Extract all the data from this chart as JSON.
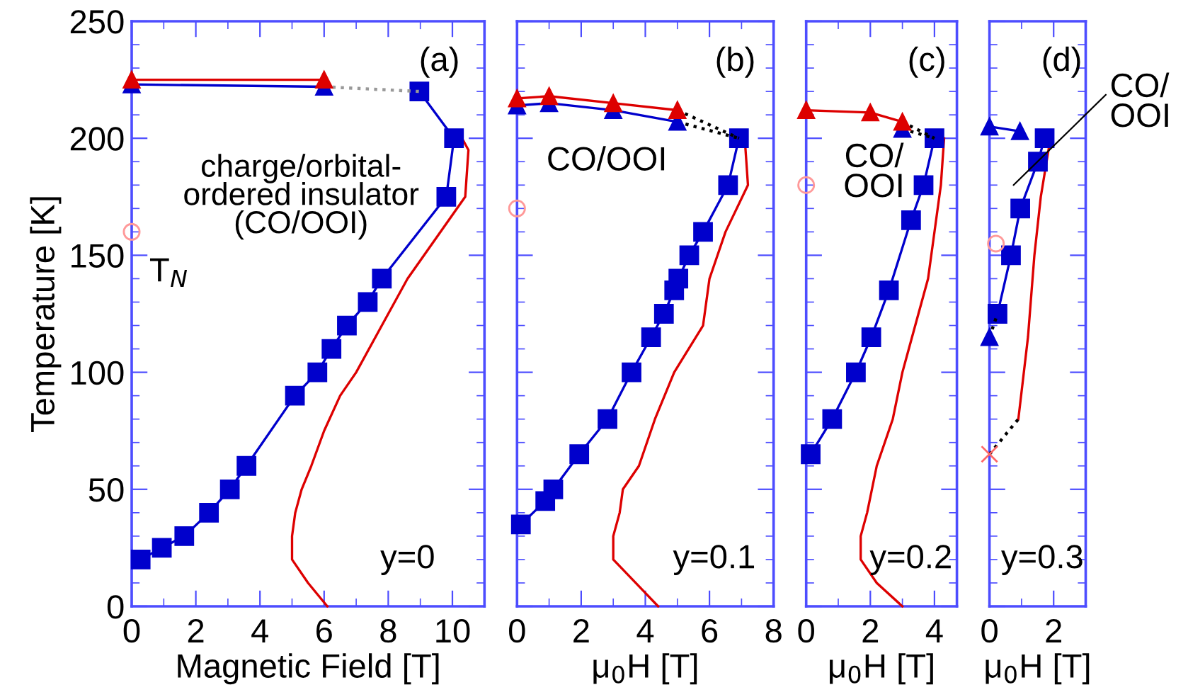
{
  "chart_data": [
    {
      "type": "scatter",
      "xlabel": "Magnetic Field [T]",
      "ylabel": "Temperature [K]",
      "xlim": [
        0,
        11
      ],
      "ylim": [
        0,
        250
      ],
      "xticks": [
        0,
        2,
        4,
        6,
        8,
        10
      ],
      "yticks": [
        0,
        50,
        100,
        150,
        200,
        250
      ],
      "grid": false,
      "legend": false,
      "annotations": [
        "(a)",
        "charge/orbital-\nordered insulator\n(CO/OOI)",
        "T$_{N}$",
        "y=0"
      ],
      "series": [
        {
          "type": "line",
          "color": "#dd0000",
          "marker": "none",
          "line_style": "solid",
          "x": [
            6.1,
            5.5,
            5.0,
            5.0,
            5.1,
            5.3,
            5.6,
            6.0,
            6.5,
            7.0,
            7.8,
            8.6,
            10.4,
            10.5,
            10.3
          ],
          "values": [
            0,
            10,
            20,
            30,
            40,
            50,
            60,
            75,
            90,
            100,
            120,
            140,
            175,
            195,
            200
          ]
        },
        {
          "type": "line",
          "color": "#0000cc",
          "marker": "square",
          "line_style": "solid",
          "x": [
            0.28,
            0.94,
            1.64,
            2.41,
            3.06,
            3.58,
            5.09,
            5.79,
            6.23,
            6.71,
            7.36,
            7.8,
            9.81,
            10.05,
            8.97
          ],
          "values": [
            20,
            25,
            30,
            40,
            50,
            60,
            90,
            100,
            110,
            120,
            130,
            140,
            175,
            200,
            220
          ]
        },
        {
          "type": "line",
          "color": "#999999",
          "marker": "none",
          "line_style": "dotted",
          "x": [
            6,
            8.97
          ],
          "values": [
            222,
            220
          ]
        },
        {
          "type": "line",
          "color": "#0000cc",
          "marker": "triangle",
          "line_style": "solid",
          "x": [
            0,
            6
          ],
          "values": [
            223,
            222
          ]
        },
        {
          "type": "line",
          "color": "#dd0000",
          "marker": "triangle",
          "line_style": "solid",
          "x": [
            0,
            6
          ],
          "values": [
            225,
            225
          ]
        },
        {
          "color": "#ff9999",
          "marker": "circle",
          "x": [
            0
          ],
          "values": [
            160
          ]
        }
      ]
    },
    {
      "type": "scatter",
      "xlabel": "μ$_{0}$H [T]",
      "xlim": [
        0,
        8
      ],
      "ylim": [
        0,
        250
      ],
      "xticks": [
        0,
        2,
        4,
        6,
        8
      ],
      "yticks": [
        0,
        50,
        100,
        150,
        200,
        250
      ],
      "tick_labels": "x",
      "grid": false,
      "legend": false,
      "annotations": [
        "(b)",
        "CO/OOI",
        "y=0.1"
      ],
      "series": [
        {
          "type": "line",
          "color": "#dd0000",
          "marker": "none",
          "line_style": "solid",
          "x": [
            4.4,
            3.7,
            3.0,
            3.0,
            3.2,
            3.3,
            3.8,
            4.3,
            4.9,
            5.8,
            6.0,
            6.5,
            7.2,
            7.1
          ],
          "values": [
            0,
            10,
            20,
            30,
            40,
            50,
            60,
            80,
            100,
            120,
            140,
            160,
            180,
            200
          ]
        },
        {
          "type": "line",
          "color": "#0000cc",
          "marker": "square",
          "line_style": "solid",
          "x": [
            0.12,
            0.88,
            1.13,
            1.94,
            2.82,
            3.57,
            4.18,
            4.58,
            4.9,
            5.03,
            5.37,
            5.8,
            6.58,
            6.92
          ],
          "values": [
            35,
            45,
            50,
            65,
            80,
            100,
            115,
            125,
            135,
            140,
            150,
            160,
            180,
            200
          ]
        },
        {
          "type": "line",
          "color": "#000000",
          "marker": "none",
          "line_style": "dotted",
          "x": [
            5,
            6.92
          ],
          "values": [
            212,
            200
          ]
        },
        {
          "type": "line",
          "color": "#000000",
          "marker": "none",
          "line_style": "dotted",
          "x": [
            5,
            6.92
          ],
          "values": [
            207,
            200
          ]
        },
        {
          "type": "line",
          "color": "#0000cc",
          "marker": "triangle",
          "line_style": "solid",
          "x": [
            0,
            1,
            3,
            5
          ],
          "values": [
            214,
            215,
            212,
            207
          ]
        },
        {
          "type": "line",
          "color": "#dd0000",
          "marker": "triangle",
          "line_style": "solid",
          "x": [
            0,
            1,
            3,
            5
          ],
          "values": [
            217,
            218,
            215,
            212
          ]
        },
        {
          "color": "#ff9999",
          "marker": "circle",
          "x": [
            0
          ],
          "values": [
            170
          ]
        }
      ]
    },
    {
      "type": "scatter",
      "xlabel": "μ$_{0}$H [T]",
      "xlim": [
        0,
        4.7
      ],
      "ylim": [
        0,
        250
      ],
      "xticks": [
        0,
        2,
        4
      ],
      "yticks": [
        0,
        50,
        100,
        150,
        200,
        250
      ],
      "tick_labels": "x",
      "grid": false,
      "legend": false,
      "annotations": [
        "(c)",
        "CO/\nOOI",
        "y=0.2"
      ],
      "series": [
        {
          "type": "line",
          "color": "#dd0000",
          "marker": "none",
          "line_style": "solid",
          "x": [
            3.0,
            2.2,
            1.7,
            1.7,
            1.9,
            2.2,
            2.7,
            3.0,
            3.4,
            3.8,
            4.0,
            4.2,
            4.3
          ],
          "values": [
            0,
            10,
            20,
            30,
            40,
            60,
            80,
            100,
            120,
            140,
            160,
            180,
            200
          ]
        },
        {
          "type": "line",
          "color": "#0000cc",
          "marker": "square",
          "line_style": "solid",
          "x": [
            0.14,
            0.81,
            1.55,
            2.03,
            2.58,
            3.27,
            3.66,
            4.0
          ],
          "values": [
            65,
            80,
            100,
            115,
            135,
            165,
            180,
            200
          ]
        },
        {
          "type": "line",
          "color": "#000000",
          "marker": "none",
          "line_style": "dotted",
          "x": [
            3,
            4.0
          ],
          "values": [
            207,
            200
          ]
        },
        {
          "type": "line",
          "color": "#000000",
          "marker": "none",
          "line_style": "dotted",
          "x": [
            3,
            4.0
          ],
          "values": [
            204,
            200
          ]
        },
        {
          "type": "scatter",
          "color": "#0000cc",
          "marker": "triangle",
          "x": [
            3
          ],
          "values": [
            204
          ]
        },
        {
          "type": "line",
          "color": "#dd0000",
          "marker": "triangle",
          "line_style": "solid",
          "x": [
            0,
            2,
            3
          ],
          "values": [
            212,
            211,
            207
          ]
        },
        {
          "color": "#ff9999",
          "marker": "circle",
          "x": [
            0
          ],
          "values": [
            180
          ]
        }
      ]
    },
    {
      "type": "scatter",
      "xlabel": "μ$_{0}$H [T]",
      "xlim": [
        0,
        3
      ],
      "ylim": [
        0,
        250
      ],
      "xticks": [
        0,
        2
      ],
      "yticks": [
        0,
        50,
        100,
        150,
        200,
        250
      ],
      "tick_labels": "x",
      "grid": false,
      "legend": false,
      "annotations": [
        "(d)",
        "CO/\nOOI",
        "y=0.3"
      ],
      "series": [
        {
          "type": "line",
          "color": "#dd0000",
          "marker": "none",
          "line_style": "solid",
          "x": [
            0.9,
            1.2,
            1.4,
            1.6,
            1.9
          ],
          "values": [
            80,
            115,
            150,
            175,
            200
          ]
        },
        {
          "type": "line",
          "color": "#0000cc",
          "marker": "square",
          "line_style": "solid",
          "x": [
            0.25,
            0.67,
            0.96,
            1.51,
            1.72
          ],
          "values": [
            125,
            150,
            170,
            190,
            200
          ]
        },
        {
          "type": "line",
          "color": "#000000",
          "marker": "none",
          "line_style": "dotted",
          "x": [
            0,
            0.9
          ],
          "values": [
            65,
            80
          ]
        },
        {
          "type": "line",
          "color": "#000000",
          "marker": "none",
          "line_style": "dotted",
          "x": [
            0,
            0.25
          ],
          "values": [
            115,
            125
          ]
        },
        {
          "type": "line",
          "color": "#0000cc",
          "marker": "triangle",
          "line_style": "solid",
          "x": [
            0,
            0.95
          ],
          "values": [
            205,
            203
          ]
        },
        {
          "type": "scatter",
          "color": "#0000cc",
          "marker": "triangle",
          "x": [
            0
          ],
          "values": [
            115
          ]
        },
        {
          "color": "#ff9999",
          "marker": "circle",
          "x": [
            0.2
          ],
          "values": [
            155
          ]
        },
        {
          "color": "#ff6666",
          "marker": "cross",
          "x": [
            0
          ],
          "values": [
            65
          ]
        }
      ]
    }
  ]
}
